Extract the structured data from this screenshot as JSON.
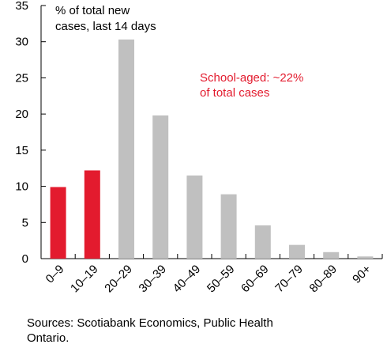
{
  "chart_data": {
    "type": "bar",
    "unit_label": "% of total new cases, last 14 days",
    "unit_label_lines": [
      "% of total new",
      "cases, last 14 days"
    ],
    "categories": [
      "0–9",
      "10–19",
      "20–29",
      "30–39",
      "40–49",
      "50–59",
      "60–69",
      "70–79",
      "80–89",
      "90+"
    ],
    "values": [
      9.9,
      12.2,
      30.3,
      19.8,
      11.5,
      8.9,
      4.6,
      1.9,
      0.9,
      0.3
    ],
    "highlight": [
      true,
      true,
      false,
      false,
      false,
      false,
      false,
      false,
      false,
      false
    ],
    "ylim": [
      0,
      35
    ],
    "yticks": [
      "0",
      "5",
      "10",
      "15",
      "20",
      "25",
      "30",
      "35"
    ],
    "annotation": [
      "School-aged: ~22%",
      "of total cases"
    ],
    "grid": false,
    "colors": {
      "highlight": "#e31b2e",
      "bar": "#c0c0c0",
      "annotation": "#e31b2e",
      "axis": "#000000"
    }
  },
  "source": [
    "Sources: Scotiabank Economics, Public Health",
    "Ontario."
  ]
}
